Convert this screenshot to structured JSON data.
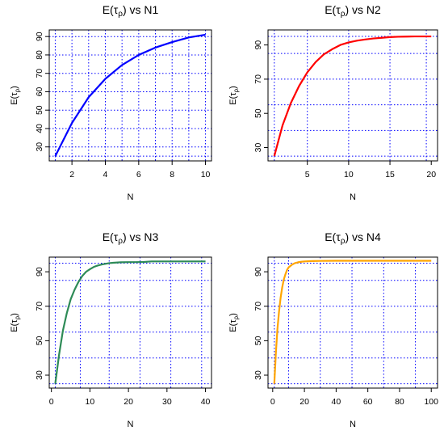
{
  "chart_data": [
    {
      "type": "line",
      "title": {
        "prefix": "E(",
        "sym": "τ",
        "sub": "ρ",
        "suffix": ") vs N1"
      },
      "xlabel": "N",
      "ylabel": {
        "prefix": "E(",
        "sym": "τ",
        "sub": "ρ",
        "suffix": ")"
      },
      "xlim": [
        0.64,
        10.36
      ],
      "ylim": [
        22.4,
        93.6
      ],
      "xticks": [
        2,
        4,
        6,
        8,
        10
      ],
      "yticks": [
        30,
        40,
        50,
        60,
        70,
        80,
        90
      ],
      "xgrid": [
        1,
        2,
        3,
        4,
        5,
        6,
        7,
        8,
        9,
        10
      ],
      "ygrid": [
        25,
        30,
        40,
        50,
        60,
        70,
        80,
        90
      ],
      "grid": true,
      "color": "#0000ff",
      "x": [
        1,
        2,
        3,
        4,
        5,
        6,
        7,
        8,
        9,
        10
      ],
      "y": [
        25,
        43,
        57,
        67,
        74.5,
        80,
        84,
        87,
        89.5,
        91
      ]
    },
    {
      "type": "line",
      "title": {
        "prefix": "E(",
        "sym": "τ",
        "sub": "ρ",
        "suffix": ") vs N2"
      },
      "xlabel": "N",
      "ylabel": {
        "prefix": "E(",
        "sym": "τ",
        "sub": "ρ",
        "suffix": ")"
      },
      "xlim": [
        0.24,
        20.76
      ],
      "ylim": [
        22.2,
        98.8
      ],
      "xticks": [
        5,
        10,
        15,
        20
      ],
      "yticks": [
        30,
        50,
        70,
        90
      ],
      "xgrid": [
        1,
        5,
        10,
        15,
        19.4
      ],
      "ygrid": [
        25,
        40,
        55,
        70,
        85,
        95
      ],
      "grid": true,
      "color": "#ff0000",
      "x": [
        1,
        2,
        3,
        4,
        5,
        6,
        7,
        8,
        9,
        10,
        11,
        12,
        13,
        14,
        15,
        16,
        17,
        18,
        19,
        20
      ],
      "y": [
        25,
        43,
        56,
        66,
        74,
        80,
        84.5,
        87.5,
        90,
        91.5,
        92.5,
        93.2,
        93.8,
        94.2,
        94.6,
        94.8,
        94.9,
        95,
        95,
        95
      ]
    },
    {
      "type": "line",
      "title": {
        "prefix": "E(",
        "sym": "τ",
        "sub": "ρ",
        "suffix": ") vs N3"
      },
      "xlabel": "N",
      "ylabel": {
        "prefix": "E(",
        "sym": "τ",
        "sub": "ρ",
        "suffix": ")"
      },
      "xlim": [
        -0.56,
        41.56
      ],
      "ylim": [
        22.5,
        98.5
      ],
      "xticks": [
        0,
        10,
        20,
        30,
        40
      ],
      "yticks": [
        30,
        50,
        70,
        90
      ],
      "xgrid": [
        1,
        7.5,
        15,
        23,
        31,
        39
      ],
      "ygrid": [
        25,
        40,
        55,
        70,
        85,
        95
      ],
      "grid": true,
      "color": "#2e8b57",
      "x": [
        1,
        2,
        3,
        4,
        5,
        6,
        7,
        8,
        9,
        10,
        11,
        12,
        13,
        14,
        15,
        16,
        18,
        20,
        22,
        24,
        26,
        28,
        30,
        32,
        34,
        36,
        38,
        40
      ],
      "y": [
        25,
        42,
        56,
        66,
        74,
        79.5,
        84,
        87.5,
        90,
        91.5,
        92.8,
        93.6,
        94.2,
        94.6,
        95,
        95.2,
        95.5,
        95.6,
        95.6,
        95.7,
        96,
        96,
        96,
        96,
        96,
        96,
        96,
        96
      ]
    },
    {
      "type": "line",
      "title": {
        "prefix": "E(",
        "sym": "τ",
        "sub": "ρ",
        "suffix": ") vs N4"
      },
      "xlabel": "N",
      "ylabel": {
        "prefix": "E(",
        "sym": "τ",
        "sub": "ρ",
        "suffix": ")"
      },
      "xlim": [
        -2.96,
        103.96
      ],
      "ylim": [
        22.5,
        98.5
      ],
      "xticks": [
        0,
        20,
        40,
        60,
        80,
        100
      ],
      "yticks": [
        30,
        50,
        70,
        90
      ],
      "xgrid": [
        1,
        10,
        30,
        50,
        70,
        90
      ],
      "ygrid": [
        25,
        40,
        55,
        70,
        85,
        95
      ],
      "grid": true,
      "color": "#ffa500",
      "x": [
        1,
        2,
        3,
        4,
        5,
        6,
        7,
        8,
        9,
        10,
        12,
        14,
        16,
        18,
        20,
        25,
        30,
        40,
        50,
        60,
        70,
        80,
        90,
        100
      ],
      "y": [
        25,
        43,
        57,
        67,
        75,
        81,
        85.5,
        88.5,
        91,
        92.5,
        94,
        95,
        95.5,
        95.8,
        96,
        96.2,
        96.3,
        96.4,
        96.4,
        96.4,
        96.4,
        96.4,
        96.4,
        96.4
      ]
    }
  ]
}
